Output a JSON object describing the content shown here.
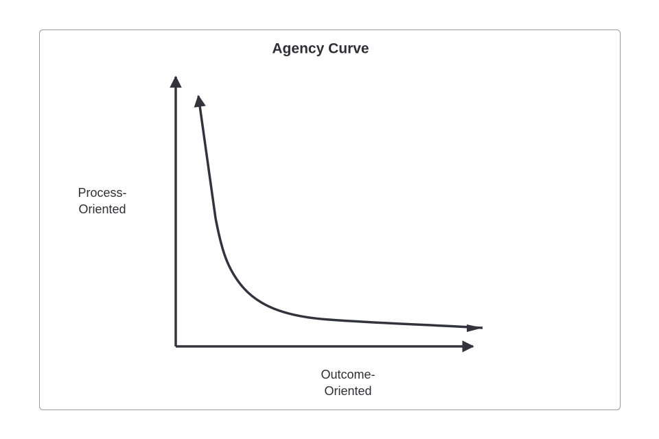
{
  "title": "Agency Curve",
  "y_axis_label": {
    "lines": [
      "Process-",
      "Oriented"
    ]
  },
  "x_axis_label": {
    "lines": [
      "Outcome-",
      "Oriented"
    ]
  }
}
